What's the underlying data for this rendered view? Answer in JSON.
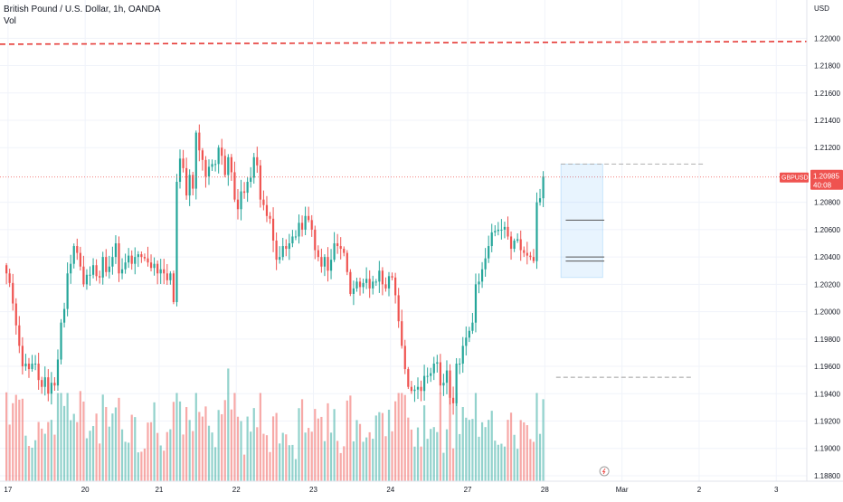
{
  "chart_data": {
    "type": "candlestick",
    "title": "British Pound / U.S. Dollar, 1h, OANDA",
    "subtitle": "Vol",
    "symbol": "GBPUSD",
    "currency": "USD",
    "last_price": "1.20985",
    "countdown": "40:08",
    "y_ticks": [
      "1.22000",
      "1.21800",
      "1.21600",
      "1.21400",
      "1.21200",
      "1.20800",
      "1.20600",
      "1.20400",
      "1.20200",
      "1.20000",
      "1.19800",
      "1.19600",
      "1.19400",
      "1.19200",
      "1.19000",
      "1.18800"
    ],
    "y_tick_values": [
      1.22,
      1.218,
      1.216,
      1.214,
      1.212,
      1.208,
      1.206,
      1.204,
      1.202,
      1.2,
      1.198,
      1.196,
      1.194,
      1.192,
      1.19,
      1.188
    ],
    "ylim": [
      1.1876,
      1.2228
    ],
    "x_ticks": [
      "17",
      "20",
      "21",
      "22",
      "23",
      "24",
      "27",
      "28",
      "Mar",
      "2",
      "3"
    ],
    "x_tick_positions": [
      0.5,
      24.5,
      47.5,
      71.5,
      95.5,
      119.5,
      143.5,
      167.5,
      191.5,
      215.5,
      239.5
    ],
    "xlim": [
      -2,
      249
    ],
    "resistance_level": 1.2197,
    "support_level": 1.1952,
    "ohlc_closes": [
      1.2028,
      1.2021,
      1.2006,
      1.199,
      1.1975,
      1.196,
      1.1962,
      1.1958,
      1.1962,
      1.1962,
      1.195,
      1.1945,
      1.1952,
      1.194,
      1.1948,
      1.1946,
      1.1965,
      1.1992,
      1.2002,
      1.2028,
      1.2035,
      1.2048,
      1.2043,
      1.2033,
      1.202,
      1.2027,
      1.2027,
      1.2034,
      1.2026,
      1.2025,
      1.204,
      1.2029,
      1.2033,
      1.204,
      1.205,
      1.2028,
      1.2031,
      1.2036,
      1.2041,
      1.2035,
      1.204,
      1.2042,
      1.204,
      1.2039,
      1.2036,
      1.2032,
      1.2035,
      1.2028,
      1.2031,
      1.2028,
      1.2023,
      1.2028,
      1.2007,
      1.2095,
      1.2112,
      1.2105,
      1.2085,
      1.21,
      1.209,
      1.2131,
      1.2118,
      1.2111,
      1.2099,
      1.2106,
      1.2108,
      1.2108,
      1.212,
      1.2114,
      1.21,
      1.2113,
      1.2102,
      1.2082,
      1.2075,
      1.2088,
      1.2087,
      1.2095,
      1.2098,
      1.2113,
      1.2107,
      1.2082,
      1.2078,
      1.207,
      1.2068,
      1.2052,
      1.2038,
      1.204,
      1.2048,
      1.2046,
      1.205,
      1.2055,
      1.2055,
      1.2065,
      1.206,
      1.207,
      1.2067,
      1.206,
      1.2045,
      1.204,
      1.2033,
      1.204,
      1.203,
      1.2038,
      1.205,
      1.2048,
      1.2046,
      1.2043,
      1.2029,
      1.2013,
      1.2017,
      1.2022,
      1.2018,
      1.2021,
      1.2024,
      1.2017,
      1.2022,
      1.2022,
      1.203,
      1.202,
      1.2017,
      1.2026,
      1.2025,
      1.2012,
      1.1993,
      1.1975,
      1.1958,
      1.1945,
      1.1942,
      1.1943,
      1.1945,
      1.1942,
      1.1953,
      1.1953,
      1.1955,
      1.1962,
      1.1963,
      1.1946,
      1.1948,
      1.1957,
      1.1937,
      1.1933,
      1.1962,
      1.1962,
      1.1975,
      1.1981,
      1.1986,
      1.1992,
      1.202,
      1.2022,
      1.2031,
      1.2039,
      1.2048,
      1.2058,
      1.2059,
      1.206,
      1.206,
      1.2062,
      1.2055,
      1.2046,
      1.2052,
      1.2053,
      1.2045,
      1.2043,
      1.2041,
      1.204,
      1.2037,
      1.208,
      1.2083,
      1.2099
    ],
    "volume_max": 0.138
  }
}
